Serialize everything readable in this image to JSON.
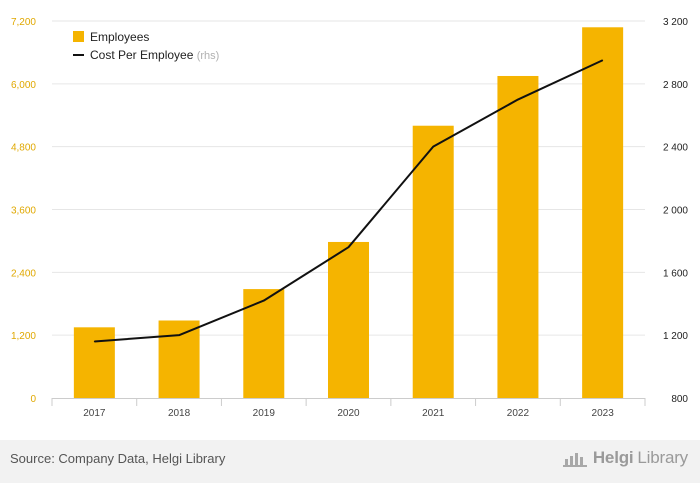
{
  "chart_data": {
    "type": "bar+line",
    "categories": [
      "2017",
      "2018",
      "2019",
      "2020",
      "2021",
      "2022",
      "2023"
    ],
    "series": [
      {
        "name": "Employees",
        "type": "bar",
        "axis": "left",
        "color": "#f5b400",
        "values": [
          1350,
          1480,
          2080,
          2980,
          5200,
          6150,
          7080
        ]
      },
      {
        "name": "Cost Per Employee",
        "name_suffix": "(rhs)",
        "type": "line",
        "axis": "right",
        "color": "#111111",
        "values": [
          1160,
          1200,
          1420,
          1760,
          2400,
          2700,
          2950
        ]
      }
    ],
    "left_axis": {
      "ylim": [
        0,
        7200
      ],
      "ticks": [
        0,
        1200,
        2400,
        3600,
        4800,
        6000,
        7200
      ],
      "tick_labels": [
        "0",
        "1,200",
        "2,400",
        "3,600",
        "4,800",
        "6,000",
        "7,200"
      ],
      "label_color": "#e0a800"
    },
    "right_axis": {
      "ylim": [
        800,
        3200
      ],
      "ticks": [
        800,
        1200,
        1600,
        2000,
        2400,
        2800,
        3200
      ],
      "tick_labels": [
        "800",
        "1 200",
        "1 600",
        "2 000",
        "2 400",
        "2 800",
        "3 200"
      ],
      "label_color": "#222222"
    },
    "grid": true,
    "legend_position": "top-left"
  },
  "footer": {
    "source": "Source: Company Data, Helgi Library",
    "brand_part1": "Helgi",
    "brand_part2": "Library"
  }
}
